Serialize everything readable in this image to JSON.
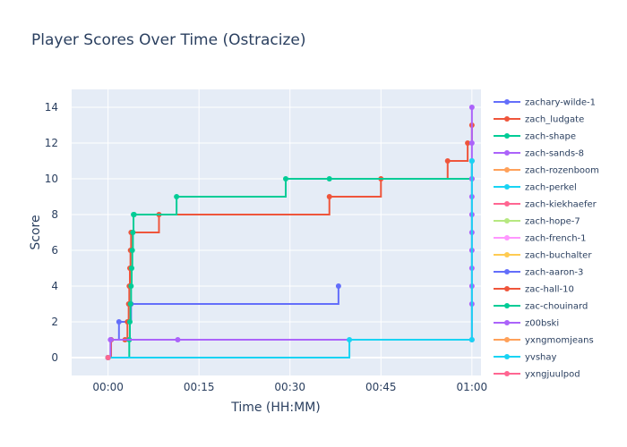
{
  "chart_data": {
    "type": "line",
    "title": "Player Scores Over Time (Ostracize)",
    "xlabel": "Time (HH:MM)",
    "ylabel": "Score",
    "x_unit": "minutes",
    "xlim": [
      -6,
      61.5
    ],
    "ylim": [
      -1,
      15
    ],
    "x_ticks": [
      {
        "value": 0,
        "label": "00:00"
      },
      {
        "value": 15,
        "label": "00:15"
      },
      {
        "value": 30,
        "label": "00:30"
      },
      {
        "value": 45,
        "label": "00:45"
      },
      {
        "value": 60,
        "label": "01:00"
      }
    ],
    "y_ticks": [
      0,
      2,
      4,
      6,
      8,
      10,
      12,
      14
    ],
    "grid": true,
    "legend_position": "right",
    "background": "#e5ecf6",
    "series": [
      {
        "name": "zachary-wilde-1",
        "color": "#636efa",
        "shape": "hv",
        "x": [
          0,
          0.5,
          1.8,
          3.8,
          38.0
        ],
        "y": [
          0,
          1,
          2,
          3,
          4
        ]
      },
      {
        "name": "zach_ludgate",
        "color": "#ef553b",
        "shape": "hv",
        "x": [
          0,
          0.5,
          2.8,
          3.2,
          3.4,
          3.5,
          3.6,
          3.7,
          3.8,
          8.4,
          36.5,
          45.0,
          56.0,
          59.3,
          60.0
        ],
        "y": [
          0,
          1,
          1,
          2,
          3,
          4,
          5,
          6,
          7,
          8,
          9,
          10,
          11,
          12,
          13
        ]
      },
      {
        "name": "zach-shape",
        "color": "#00cc96",
        "shape": "hv",
        "x": [
          0,
          3.5,
          3.6,
          3.7,
          3.8,
          3.9,
          4.0,
          4.1,
          4.2,
          4.3,
          11.3,
          29.3,
          36.5,
          60.0,
          60.0
        ],
        "y": [
          0,
          1,
          2,
          3,
          4,
          5,
          6,
          7,
          8,
          8,
          9,
          10,
          10,
          10,
          11
        ]
      },
      {
        "name": "zach-sands-8",
        "color": "#ab63fa",
        "shape": "hv",
        "x": [
          0,
          0.4,
          11.5,
          60.0,
          60.0,
          60.0,
          60.0,
          60.0,
          60.0,
          60.0,
          60.0,
          60.0,
          60.0,
          60.0,
          60.0
        ],
        "y": [
          0,
          1,
          1,
          1,
          3,
          4,
          5,
          6,
          7,
          8,
          9,
          10,
          11,
          12,
          14
        ]
      },
      {
        "name": "zach-rozenboom",
        "color": "#ffa15a",
        "shape": "hv",
        "x": [
          0
        ],
        "y": [
          0
        ]
      },
      {
        "name": "zach-perkel",
        "color": "#19d3f3",
        "shape": "hv",
        "x": [
          0,
          39.8,
          60.0,
          60.0
        ],
        "y": [
          0,
          1,
          1,
          11
        ]
      },
      {
        "name": "zach-kiekhaefer",
        "color": "#ff6692",
        "shape": "hv",
        "x": [
          0
        ],
        "y": [
          0
        ]
      },
      {
        "name": "zach-hope-7",
        "color": "#b6e880",
        "shape": "hv",
        "x": [
          0
        ],
        "y": [
          0
        ]
      },
      {
        "name": "zach-french-1",
        "color": "#ff97ff",
        "shape": "hv",
        "x": [
          0
        ],
        "y": [
          0
        ]
      },
      {
        "name": "zach-buchalter",
        "color": "#fecb52",
        "shape": "hv",
        "x": [
          0
        ],
        "y": [
          0
        ]
      },
      {
        "name": "zach-aaron-3",
        "color": "#636efa",
        "shape": "hv",
        "x": [
          0
        ],
        "y": [
          0
        ]
      },
      {
        "name": "zac-hall-10",
        "color": "#ef553b",
        "shape": "hv",
        "x": [
          0
        ],
        "y": [
          0
        ]
      },
      {
        "name": "zac-chouinard",
        "color": "#00cc96",
        "shape": "hv",
        "x": [
          0
        ],
        "y": [
          0
        ]
      },
      {
        "name": "z00bski",
        "color": "#ab63fa",
        "shape": "hv",
        "x": [
          0
        ],
        "y": [
          0
        ]
      },
      {
        "name": "yxngmomjeans",
        "color": "#ffa15a",
        "shape": "hv",
        "x": [
          0
        ],
        "y": [
          0
        ]
      },
      {
        "name": "yvshay",
        "color": "#19d3f3",
        "shape": "hv",
        "x": [
          0
        ],
        "y": [
          0
        ]
      },
      {
        "name": "yxngjuulpod",
        "color": "#ff6692",
        "shape": "hv",
        "x": [
          0
        ],
        "y": [
          0
        ]
      }
    ]
  }
}
